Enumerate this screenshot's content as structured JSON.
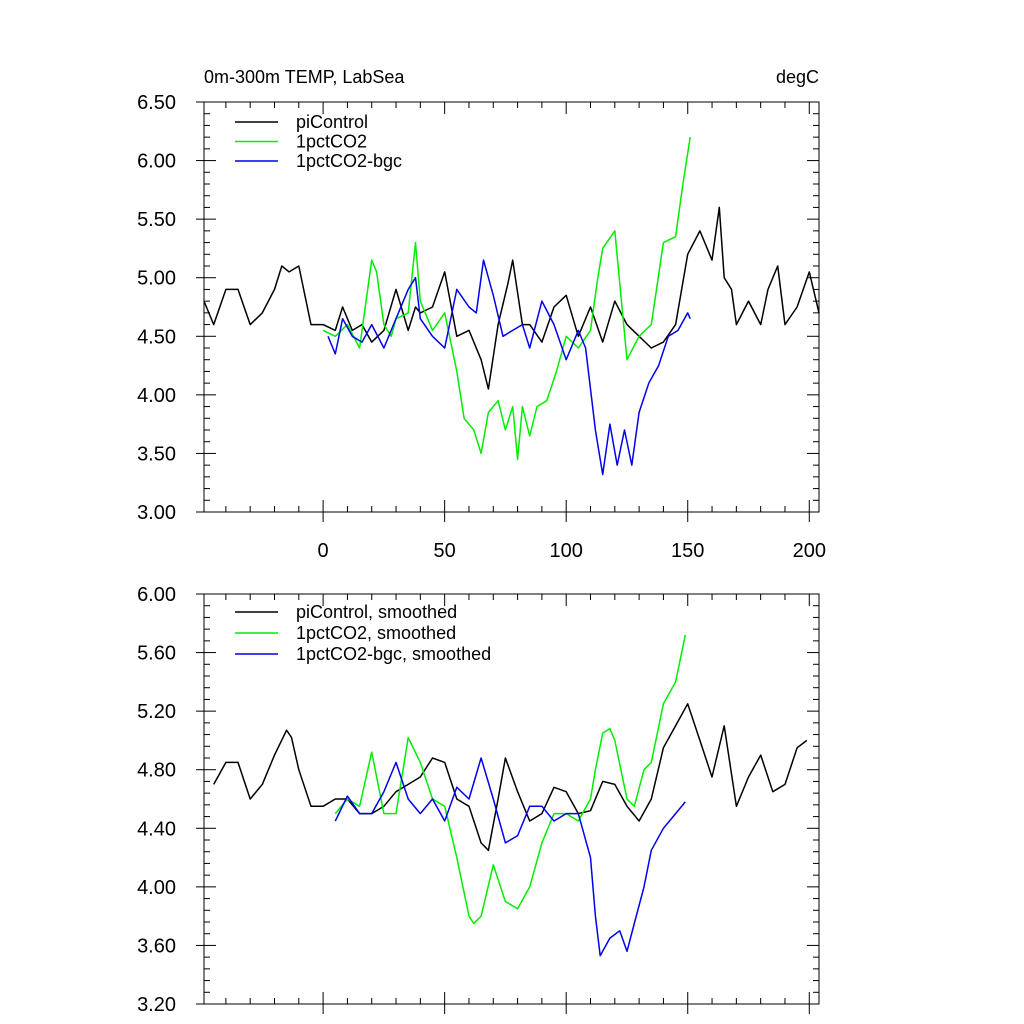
{
  "colors": {
    "piControl": "#000000",
    "1pctCO2": "#00ee00",
    "1pctCO2-bgc": "#0000ee"
  },
  "chart_data": [
    {
      "type": "line",
      "title": "0m-300m TEMP, LabSea",
      "units": "degC",
      "xlim": [
        -49,
        204
      ],
      "ylim": [
        3.0,
        6.5
      ],
      "xticks": [
        0,
        50,
        100,
        150,
        200
      ],
      "xtick_labels": [
        "0",
        "50",
        "100",
        "150",
        "200"
      ],
      "yticks": [
        3.0,
        3.5,
        4.0,
        4.5,
        5.0,
        5.5,
        6.0,
        6.5
      ],
      "ytick_labels": [
        "3.00",
        "3.50",
        "4.00",
        "4.50",
        "5.00",
        "5.50",
        "6.00",
        "6.50"
      ],
      "legend": "top-left",
      "series": [
        {
          "name": "piControl",
          "color": "#000000",
          "x": [
            -49,
            -45,
            -40,
            -35,
            -30,
            -25,
            -20,
            -17,
            -14,
            -10,
            -5,
            0,
            5,
            8,
            12,
            16,
            20,
            25,
            30,
            35,
            38,
            40,
            45,
            50,
            55,
            60,
            65,
            68,
            72,
            76,
            78,
            82,
            85,
            90,
            95,
            100,
            105,
            110,
            115,
            120,
            125,
            130,
            135,
            140,
            145,
            150,
            155,
            160,
            163,
            165,
            168,
            170,
            175,
            180,
            183,
            187,
            190,
            195,
            200,
            204
          ],
          "y": [
            4.8,
            4.6,
            4.9,
            4.9,
            4.6,
            4.7,
            4.9,
            5.1,
            5.05,
            5.1,
            4.6,
            4.6,
            4.55,
            4.75,
            4.55,
            4.6,
            4.45,
            4.55,
            4.9,
            4.55,
            4.75,
            4.7,
            4.75,
            5.05,
            4.5,
            4.55,
            4.3,
            4.05,
            4.6,
            4.95,
            5.15,
            4.6,
            4.6,
            4.45,
            4.75,
            4.85,
            4.5,
            4.75,
            4.45,
            4.8,
            4.6,
            4.5,
            4.4,
            4.45,
            4.6,
            5.2,
            5.4,
            5.15,
            5.6,
            5.0,
            4.9,
            4.6,
            4.8,
            4.6,
            4.9,
            5.1,
            4.6,
            4.75,
            5.05,
            4.7
          ]
        },
        {
          "name": "1pctCO2",
          "color": "#00ee00",
          "x": [
            0,
            5,
            10,
            15,
            20,
            22,
            25,
            28,
            30,
            35,
            38,
            40,
            45,
            50,
            55,
            58,
            62,
            65,
            68,
            72,
            75,
            78,
            80,
            82,
            85,
            88,
            92,
            96,
            100,
            105,
            110,
            113,
            115,
            120,
            125,
            130,
            135,
            140,
            145,
            148,
            151
          ],
          "y": [
            4.55,
            4.5,
            4.6,
            4.4,
            5.15,
            5.05,
            4.6,
            4.5,
            4.65,
            4.7,
            5.3,
            4.8,
            4.55,
            4.7,
            4.2,
            3.8,
            3.7,
            3.5,
            3.85,
            3.95,
            3.7,
            3.9,
            3.45,
            3.9,
            3.65,
            3.9,
            3.95,
            4.2,
            4.5,
            4.4,
            4.55,
            5.0,
            5.25,
            5.4,
            4.3,
            4.5,
            4.6,
            5.3,
            5.35,
            5.8,
            6.2
          ]
        },
        {
          "name": "1pctCO2-bgc",
          "color": "#0000ee",
          "x": [
            2,
            5,
            8,
            12,
            16,
            20,
            25,
            30,
            35,
            38,
            40,
            45,
            50,
            55,
            60,
            63,
            66,
            70,
            74,
            78,
            82,
            85,
            90,
            95,
            100,
            103,
            105,
            108,
            110,
            112,
            115,
            118,
            121,
            124,
            127,
            130,
            134,
            138,
            142,
            146,
            150,
            151
          ],
          "y": [
            4.5,
            4.35,
            4.65,
            4.5,
            4.45,
            4.6,
            4.4,
            4.65,
            4.9,
            5.0,
            4.65,
            4.5,
            4.4,
            4.9,
            4.75,
            4.7,
            5.15,
            4.85,
            4.5,
            4.55,
            4.6,
            4.4,
            4.8,
            4.6,
            4.3,
            4.45,
            4.55,
            4.4,
            4.05,
            3.7,
            3.32,
            3.75,
            3.4,
            3.7,
            3.4,
            3.85,
            4.1,
            4.25,
            4.5,
            4.55,
            4.7,
            4.65
          ]
        }
      ]
    },
    {
      "type": "line",
      "title": "",
      "xlim": [
        -49,
        204
      ],
      "ylim": [
        3.2,
        6.0
      ],
      "xticks": [
        0,
        50,
        100,
        150,
        200
      ],
      "yticks": [
        3.2,
        3.6,
        4.0,
        4.4,
        4.8,
        5.2,
        5.6,
        6.0
      ],
      "ytick_labels": [
        "3.20",
        "3.60",
        "4.00",
        "4.40",
        "4.80",
        "5.20",
        "5.60",
        "6.00"
      ],
      "legend": "top-left",
      "series": [
        {
          "name": "piControl, smoothed",
          "color": "#000000",
          "x": [
            -45,
            -40,
            -35,
            -30,
            -25,
            -20,
            -15,
            -13,
            -10,
            -5,
            0,
            5,
            10,
            15,
            20,
            25,
            30,
            35,
            40,
            45,
            50,
            55,
            60,
            65,
            68,
            72,
            75,
            80,
            85,
            90,
            95,
            100,
            105,
            110,
            115,
            120,
            125,
            130,
            135,
            140,
            145,
            150,
            155,
            160,
            165,
            170,
            175,
            180,
            185,
            190,
            195,
            199
          ],
          "y": [
            4.7,
            4.85,
            4.85,
            4.6,
            4.7,
            4.9,
            5.07,
            5.02,
            4.8,
            4.55,
            4.55,
            4.6,
            4.6,
            4.5,
            4.5,
            4.55,
            4.65,
            4.7,
            4.75,
            4.88,
            4.85,
            4.6,
            4.55,
            4.3,
            4.25,
            4.6,
            4.88,
            4.65,
            4.45,
            4.5,
            4.68,
            4.65,
            4.5,
            4.52,
            4.72,
            4.7,
            4.55,
            4.45,
            4.6,
            4.95,
            5.1,
            5.25,
            5.0,
            4.75,
            5.1,
            4.55,
            4.75,
            4.9,
            4.65,
            4.7,
            4.95,
            5.0
          ]
        },
        {
          "name": "1pctCO2, smoothed",
          "color": "#00ee00",
          "x": [
            5,
            10,
            15,
            20,
            25,
            30,
            35,
            40,
            45,
            50,
            55,
            60,
            62,
            65,
            70,
            75,
            80,
            85,
            90,
            95,
            100,
            105,
            110,
            112,
            115,
            118,
            120,
            125,
            128,
            132,
            135,
            140,
            145,
            149
          ],
          "y": [
            4.5,
            4.6,
            4.55,
            4.92,
            4.5,
            4.5,
            5.02,
            4.85,
            4.6,
            4.55,
            4.2,
            3.8,
            3.75,
            3.8,
            4.15,
            3.9,
            3.85,
            4.0,
            4.3,
            4.5,
            4.5,
            4.45,
            4.6,
            4.8,
            5.05,
            5.08,
            5.0,
            4.6,
            4.55,
            4.8,
            4.85,
            5.25,
            5.4,
            5.72
          ]
        },
        {
          "name": "1pctCO2-bgc, smoothed",
          "color": "#0000ee",
          "x": [
            5,
            10,
            15,
            20,
            25,
            30,
            35,
            40,
            45,
            50,
            55,
            60,
            65,
            70,
            75,
            80,
            85,
            90,
            95,
            100,
            105,
            110,
            112,
            114,
            118,
            122,
            125,
            128,
            132,
            135,
            140,
            145,
            149
          ],
          "y": [
            4.45,
            4.62,
            4.5,
            4.5,
            4.65,
            4.85,
            4.6,
            4.5,
            4.6,
            4.45,
            4.68,
            4.6,
            4.88,
            4.6,
            4.3,
            4.35,
            4.55,
            4.55,
            4.45,
            4.5,
            4.5,
            4.2,
            3.8,
            3.53,
            3.65,
            3.7,
            3.56,
            3.75,
            4.0,
            4.25,
            4.4,
            4.5,
            4.58
          ]
        }
      ]
    }
  ]
}
